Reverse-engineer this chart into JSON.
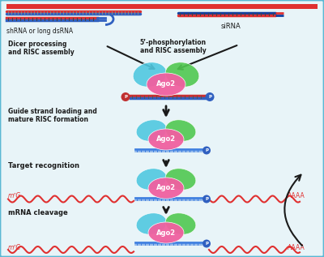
{
  "bg_color": "#e8f4f8",
  "border_color": "#5bb8d4",
  "top_bar_color": "#e03030",
  "dsRNA_color_red": "#e03030",
  "dsRNA_color_blue": "#3060c0",
  "siRNA_blue": "#1040a0",
  "siRNA_red": "#e03030",
  "ago2_pink": "#f060a0",
  "ago2_cyan": "#50c8e0",
  "ago2_green": "#50c850",
  "guide_strand_blue": "#4080e0",
  "phosphate_blue": "#3060c0",
  "phosphate_red": "#c03030",
  "mrna_red": "#e03030",
  "arrow_color": "#1a1a1a",
  "text_color": "#1a1a1a",
  "labels": {
    "shRNA": "shRNA or long dsRNA",
    "siRNA": "siRNA",
    "dicer": "Dicer processing\nand RISC assembly",
    "guide": "Guide strand loading and\nmature RISC formation",
    "target": "Target recognition",
    "mRNA": "mRNA cleavage",
    "m7G_1": "m⁷G",
    "m7G_2": "m⁷G",
    "AAAA_1": "AAAA",
    "AAAA_2": "AAAA",
    "Ago2": "Ago2",
    "P": "P",
    "phospho": "5’-phosphorylation\nand RISC assembly"
  }
}
